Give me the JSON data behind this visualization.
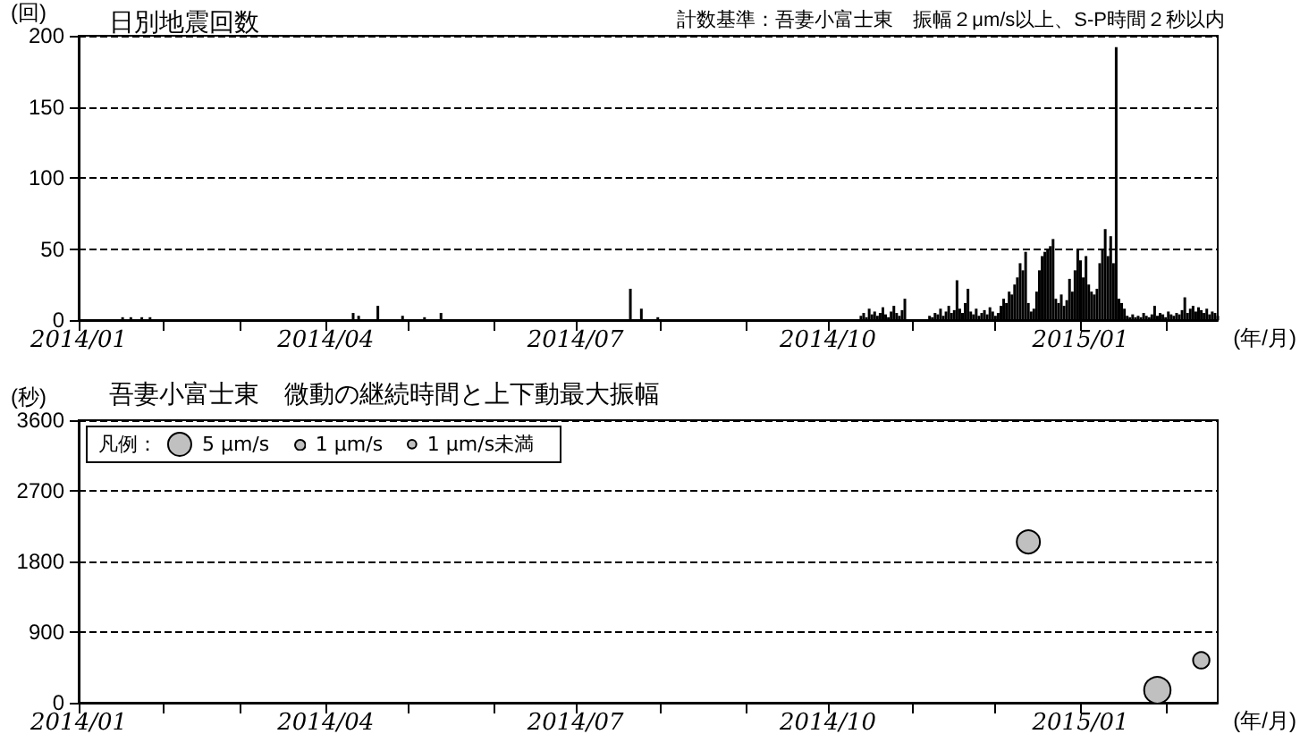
{
  "chart_data": [
    {
      "type": "bar",
      "title": "日別地震回数",
      "ylabel": "(回)",
      "xlabel": "(年/月)",
      "annotations": [
        "計数基準：吾妻小富士東　振幅２μm/s以上、S-P時間２秒以内"
      ],
      "color": "#000000",
      "grid": "y",
      "line_style": "dashed",
      "xlim": [
        "2014-01-01",
        "2015-02-20"
      ],
      "xticks": [
        {
          "value": "2014-01-01",
          "label": "2014/01"
        },
        {
          "value": "2014-02-01",
          "label": null
        },
        {
          "value": "2014-03-01",
          "label": null
        },
        {
          "value": "2014-04-01",
          "label": "2014/04"
        },
        {
          "value": "2014-05-01",
          "label": null
        },
        {
          "value": "2014-06-01",
          "label": null
        },
        {
          "value": "2014-07-01",
          "label": "2014/07"
        },
        {
          "value": "2014-08-01",
          "label": null
        },
        {
          "value": "2014-09-01",
          "label": null
        },
        {
          "value": "2014-10-01",
          "label": "2014/10"
        },
        {
          "value": "2014-11-01",
          "label": null
        },
        {
          "value": "2014-12-01",
          "label": null
        },
        {
          "value": "2015-01-01",
          "label": "2015/01"
        },
        {
          "value": "2015-02-01",
          "label": null
        }
      ],
      "ylim": [
        0,
        200
      ],
      "yticks": [
        0,
        50,
        100,
        150,
        200
      ],
      "x": [
        "2014-01-17",
        "2014-01-20",
        "2014-01-24",
        "2014-01-27",
        "2014-04-11",
        "2014-04-13",
        "2014-04-20",
        "2014-04-29",
        "2014-05-07",
        "2014-05-13",
        "2014-07-21",
        "2014-07-25",
        "2014-07-31",
        "2014-10-13",
        "2014-10-14",
        "2014-10-15",
        "2014-10-16",
        "2014-10-17",
        "2014-10-18",
        "2014-10-19",
        "2014-10-20",
        "2014-10-21",
        "2014-10-22",
        "2014-10-23",
        "2014-10-24",
        "2014-10-25",
        "2014-10-26",
        "2014-10-27",
        "2014-10-28",
        "2014-10-29",
        "2014-11-07",
        "2014-11-08",
        "2014-11-09",
        "2014-11-10",
        "2014-11-11",
        "2014-11-12",
        "2014-11-13",
        "2014-11-14",
        "2014-11-15",
        "2014-11-16",
        "2014-11-17",
        "2014-11-18",
        "2014-11-19",
        "2014-11-20",
        "2014-11-21",
        "2014-11-22",
        "2014-11-23",
        "2014-11-24",
        "2014-11-25",
        "2014-11-26",
        "2014-11-27",
        "2014-11-28",
        "2014-11-29",
        "2014-11-30",
        "2014-12-01",
        "2014-12-02",
        "2014-12-03",
        "2014-12-04",
        "2014-12-05",
        "2014-12-06",
        "2014-12-07",
        "2014-12-08",
        "2014-12-09",
        "2014-12-10",
        "2014-12-11",
        "2014-12-12",
        "2014-12-13",
        "2014-12-14",
        "2014-12-15",
        "2014-12-16",
        "2014-12-17",
        "2014-12-18",
        "2014-12-19",
        "2014-12-20",
        "2014-12-21",
        "2014-12-22",
        "2014-12-23",
        "2014-12-24",
        "2014-12-25",
        "2014-12-26",
        "2014-12-27",
        "2014-12-28",
        "2014-12-29",
        "2014-12-30",
        "2014-12-31",
        "2015-01-01",
        "2015-01-02",
        "2015-01-03",
        "2015-01-04",
        "2015-01-05",
        "2015-01-06",
        "2015-01-07",
        "2015-01-08",
        "2015-01-09",
        "2015-01-10",
        "2015-01-11",
        "2015-01-12",
        "2015-01-13",
        "2015-01-14",
        "2015-01-15",
        "2015-01-16",
        "2015-01-17",
        "2015-01-18",
        "2015-01-19",
        "2015-01-20",
        "2015-01-21",
        "2015-01-22",
        "2015-01-23",
        "2015-01-24",
        "2015-01-25",
        "2015-01-26",
        "2015-01-27",
        "2015-01-28",
        "2015-01-29",
        "2015-01-30",
        "2015-01-31",
        "2015-02-01",
        "2015-02-02",
        "2015-02-03",
        "2015-02-04",
        "2015-02-05",
        "2015-02-06",
        "2015-02-07",
        "2015-02-08",
        "2015-02-09",
        "2015-02-10",
        "2015-02-11",
        "2015-02-12",
        "2015-02-13",
        "2015-02-14",
        "2015-02-15",
        "2015-02-16",
        "2015-02-17",
        "2015-02-18",
        "2015-02-19",
        "2015-02-20"
      ],
      "values": [
        2,
        2,
        2,
        2,
        5,
        3,
        10,
        3,
        2,
        5,
        22,
        8,
        2,
        3,
        5,
        2,
        8,
        4,
        6,
        3,
        5,
        9,
        4,
        2,
        6,
        10,
        5,
        3,
        7,
        15,
        3,
        2,
        5,
        4,
        8,
        3,
        6,
        10,
        5,
        7,
        28,
        8,
        5,
        12,
        22,
        6,
        4,
        8,
        3,
        5,
        7,
        4,
        9,
        6,
        3,
        5,
        10,
        15,
        12,
        20,
        18,
        25,
        30,
        40,
        35,
        48,
        12,
        6,
        8,
        20,
        35,
        45,
        48,
        50,
        52,
        57,
        15,
        12,
        18,
        10,
        14,
        29,
        20,
        35,
        50,
        42,
        30,
        45,
        25,
        20,
        18,
        22,
        40,
        50,
        64,
        45,
        59,
        40,
        192,
        15,
        12,
        8,
        3,
        2,
        4,
        2,
        3,
        2,
        5,
        3,
        2,
        4,
        10,
        3,
        5,
        4,
        2,
        6,
        4,
        3,
        5,
        4,
        7,
        16,
        5,
        8,
        10,
        6,
        9,
        7,
        5,
        8,
        4,
        6,
        5,
        3
      ]
    },
    {
      "type": "bubble",
      "title": "吾妻小富士東　微動の継続時間と上下動最大振幅",
      "ylabel": "(秒)",
      "xlabel": "(年/月)",
      "color": "#c0c0c0",
      "grid": "y",
      "line_style": "dashed",
      "legend_title": "凡例：",
      "size_legend": [
        {
          "value": 5,
          "label": "5 μm/s"
        },
        {
          "value": 1,
          "label": "1 μm/s"
        },
        {
          "value": 0.7,
          "label": "1 μm/s未満"
        }
      ],
      "xlim": [
        "2014-01-01",
        "2015-02-20"
      ],
      "xticks": [
        {
          "value": "2014-01-01",
          "label": "2014/01"
        },
        {
          "value": "2014-02-01",
          "label": null
        },
        {
          "value": "2014-03-01",
          "label": null
        },
        {
          "value": "2014-04-01",
          "label": "2014/04"
        },
        {
          "value": "2014-05-01",
          "label": null
        },
        {
          "value": "2014-06-01",
          "label": null
        },
        {
          "value": "2014-07-01",
          "label": "2014/07"
        },
        {
          "value": "2014-08-01",
          "label": null
        },
        {
          "value": "2014-09-01",
          "label": null
        },
        {
          "value": "2014-10-01",
          "label": "2014/10"
        },
        {
          "value": "2014-11-01",
          "label": null
        },
        {
          "value": "2014-12-01",
          "label": null
        },
        {
          "value": "2015-01-01",
          "label": "2015/01"
        },
        {
          "value": "2015-02-01",
          "label": null
        }
      ],
      "ylim": [
        0,
        3600
      ],
      "yticks": [
        0,
        900,
        1800,
        2700,
        3600
      ],
      "x": [
        "2014-12-13",
        "2015-01-29",
        "2015-02-14"
      ],
      "values": [
        2050,
        160,
        540
      ],
      "sizes": [
        5,
        6.5,
        2.5
      ]
    }
  ]
}
